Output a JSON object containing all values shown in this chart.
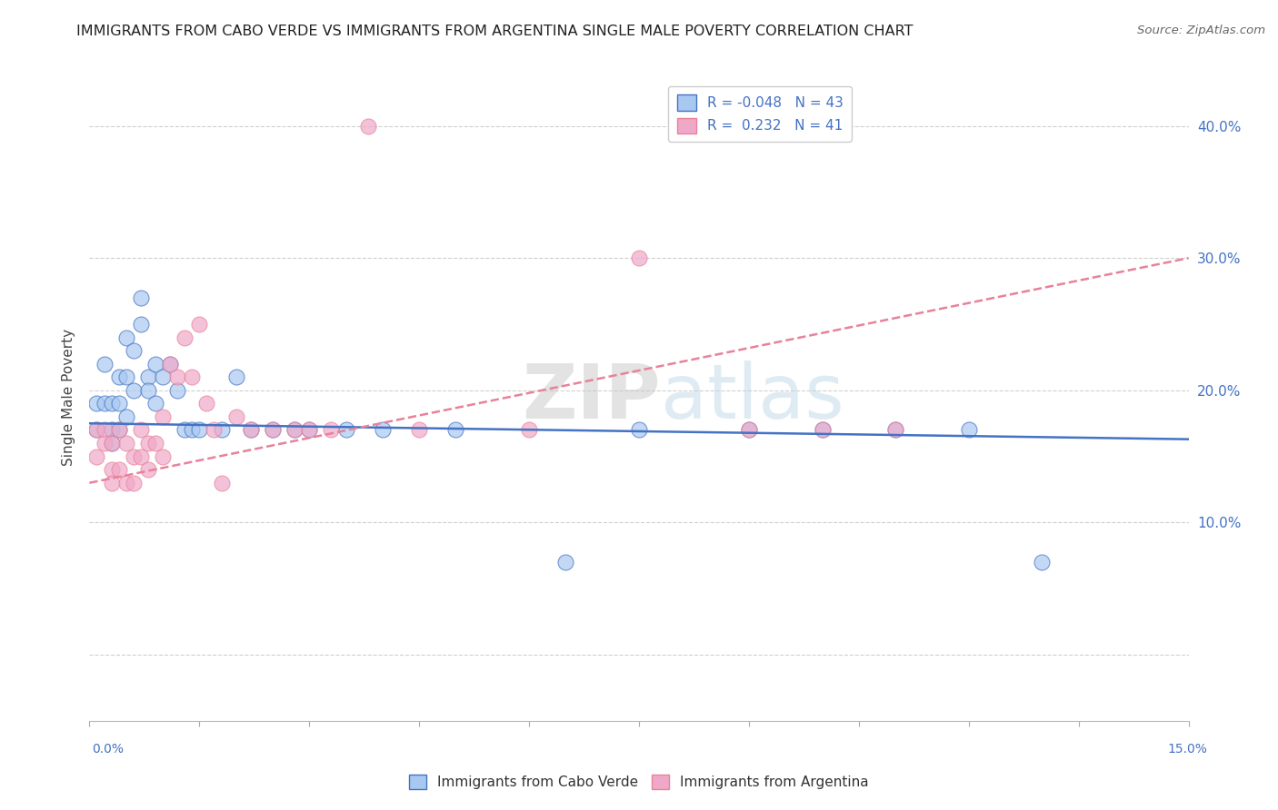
{
  "title": "IMMIGRANTS FROM CABO VERDE VS IMMIGRANTS FROM ARGENTINA SINGLE MALE POVERTY CORRELATION CHART",
  "source": "Source: ZipAtlas.com",
  "xlabel_cabo": "Immigrants from Cabo Verde",
  "xlabel_argentina": "Immigrants from Argentina",
  "ylabel": "Single Male Poverty",
  "xlim": [
    0.0,
    0.15
  ],
  "ylim": [
    -0.05,
    0.44
  ],
  "yticks": [
    0.0,
    0.1,
    0.2,
    0.3,
    0.4
  ],
  "ytick_labels_right": [
    "",
    "10.0%",
    "20.0%",
    "30.0%",
    "40.0%"
  ],
  "R_cabo": -0.048,
  "N_cabo": 43,
  "R_argentina": 0.232,
  "N_argentina": 41,
  "color_cabo": "#a8c8f0",
  "color_argentina": "#f0a8c8",
  "trendline_cabo_color": "#4472c4",
  "trendline_argentina_color": "#e8829a",
  "watermark": "ZIPatlas",
  "cabo_x": [
    0.001,
    0.001,
    0.002,
    0.002,
    0.003,
    0.003,
    0.003,
    0.004,
    0.004,
    0.004,
    0.005,
    0.005,
    0.005,
    0.006,
    0.006,
    0.007,
    0.007,
    0.008,
    0.008,
    0.009,
    0.009,
    0.01,
    0.011,
    0.012,
    0.013,
    0.014,
    0.015,
    0.018,
    0.02,
    0.022,
    0.025,
    0.028,
    0.03,
    0.035,
    0.04,
    0.05,
    0.065,
    0.075,
    0.09,
    0.1,
    0.11,
    0.12,
    0.13
  ],
  "cabo_y": [
    0.19,
    0.17,
    0.22,
    0.19,
    0.19,
    0.17,
    0.16,
    0.21,
    0.19,
    0.17,
    0.24,
    0.21,
    0.18,
    0.23,
    0.2,
    0.27,
    0.25,
    0.21,
    0.2,
    0.22,
    0.19,
    0.21,
    0.22,
    0.2,
    0.17,
    0.17,
    0.17,
    0.17,
    0.21,
    0.17,
    0.17,
    0.17,
    0.17,
    0.17,
    0.17,
    0.17,
    0.07,
    0.17,
    0.17,
    0.17,
    0.17,
    0.17,
    0.07
  ],
  "argentina_x": [
    0.001,
    0.001,
    0.002,
    0.002,
    0.003,
    0.003,
    0.003,
    0.004,
    0.004,
    0.005,
    0.005,
    0.006,
    0.006,
    0.007,
    0.007,
    0.008,
    0.008,
    0.009,
    0.01,
    0.01,
    0.011,
    0.012,
    0.013,
    0.014,
    0.015,
    0.016,
    0.017,
    0.018,
    0.02,
    0.022,
    0.025,
    0.028,
    0.03,
    0.033,
    0.038,
    0.045,
    0.06,
    0.075,
    0.09,
    0.1,
    0.11
  ],
  "argentina_y": [
    0.17,
    0.15,
    0.17,
    0.16,
    0.16,
    0.14,
    0.13,
    0.17,
    0.14,
    0.16,
    0.13,
    0.15,
    0.13,
    0.17,
    0.15,
    0.16,
    0.14,
    0.16,
    0.18,
    0.15,
    0.22,
    0.21,
    0.24,
    0.21,
    0.25,
    0.19,
    0.17,
    0.13,
    0.18,
    0.17,
    0.17,
    0.17,
    0.17,
    0.17,
    0.4,
    0.17,
    0.17,
    0.3,
    0.17,
    0.17,
    0.17
  ]
}
